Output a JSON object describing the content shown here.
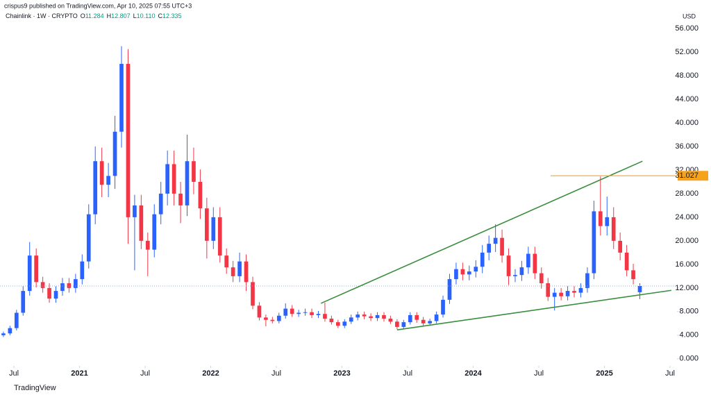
{
  "chart_data": {
    "type": "candlestick",
    "published": "crispus9 published on TradingView.com, Apr 10, 2025 07:55 UTC+3",
    "symbol": "Chainlink · 1W · CRYPTO",
    "ohlc_labels": [
      "O",
      "H",
      "L",
      "C"
    ],
    "ohlc_values": [
      "11.284",
      "12.807",
      "10.110",
      "12.335"
    ],
    "currency": "USD",
    "brand": "TradingView",
    "up_color": "#2962ff",
    "down_color": "#f23645",
    "x": [
      2020.42,
      2020.47,
      2020.52,
      2020.57,
      2020.62,
      2020.67,
      2020.72,
      2020.77,
      2020.82,
      2020.87,
      2020.92,
      2020.97,
      2021.02,
      2021.07,
      2021.12,
      2021.17,
      2021.22,
      2021.27,
      2021.32,
      2021.37,
      2021.42,
      2021.47,
      2021.52,
      2021.57,
      2021.62,
      2021.67,
      2021.72,
      2021.77,
      2021.82,
      2021.87,
      2021.92,
      2021.97,
      2022.02,
      2022.07,
      2022.12,
      2022.17,
      2022.22,
      2022.27,
      2022.32,
      2022.37,
      2022.42,
      2022.47,
      2022.52,
      2022.57,
      2022.62,
      2022.67,
      2022.72,
      2022.77,
      2022.82,
      2022.87,
      2022.92,
      2022.97,
      2023.02,
      2023.07,
      2023.12,
      2023.17,
      2023.22,
      2023.27,
      2023.32,
      2023.37,
      2023.42,
      2023.47,
      2023.52,
      2023.57,
      2023.62,
      2023.67,
      2023.72,
      2023.77,
      2023.82,
      2023.87,
      2023.92,
      2023.97,
      2024.02,
      2024.07,
      2024.12,
      2024.17,
      2024.22,
      2024.27,
      2024.32,
      2024.37,
      2024.42,
      2024.47,
      2024.52,
      2024.57,
      2024.62,
      2024.67,
      2024.72,
      2024.77,
      2024.82,
      2024.87,
      2024.92,
      2024.97,
      2025.02,
      2025.07,
      2025.12,
      2025.17,
      2025.22,
      2025.27
    ],
    "open": [
      4.0,
      4.3,
      5.2,
      7.8,
      11.5,
      17.5,
      13.0,
      12.0,
      10.2,
      11.5,
      12.8,
      12.0,
      13.5,
      16.5,
      24.5,
      33.5,
      29.5,
      31.0,
      38.5,
      50.0,
      24.0,
      26.0,
      20.0,
      18.5,
      24.5,
      28.0,
      33.0,
      28.0,
      26.0,
      33.5,
      30.0,
      25.5,
      20.0,
      24.0,
      17.5,
      15.5,
      14.0,
      16.5,
      13.0,
      9.0,
      7.0,
      6.6,
      6.4,
      7.3,
      8.5,
      7.6,
      7.8,
      7.9,
      7.4,
      7.6,
      6.8,
      6.2,
      5.6,
      6.3,
      7.0,
      7.5,
      7.2,
      6.9,
      7.4,
      6.8,
      6.3,
      5.4,
      6.2,
      7.4,
      6.6,
      6.0,
      6.4,
      7.5,
      10.0,
      13.5,
      15.2,
      14.3,
      14.8,
      15.6,
      18.0,
      19.5,
      20.5,
      17.5,
      14.0,
      14.2,
      15.5,
      17.8,
      14.5,
      12.8,
      10.5,
      11.2,
      10.6,
      11.5,
      11.2,
      12.0,
      14.5,
      25.0,
      22.5,
      24.0,
      20.0,
      18.0,
      15.0,
      11.284
    ],
    "high": [
      4.6,
      5.6,
      8.3,
      12.3,
      19.8,
      18.7,
      13.9,
      12.8,
      12.3,
      13.7,
      13.7,
      14.4,
      17.7,
      26.2,
      36.0,
      35.8,
      33.2,
      41.2,
      53.0,
      52.5,
      27.8,
      27.8,
      21.4,
      26.2,
      30.0,
      35.3,
      35.3,
      30.0,
      38.0,
      35.8,
      32.1,
      27.3,
      25.7,
      25.7,
      18.7,
      16.6,
      18.0,
      17.7,
      13.9,
      9.6,
      7.5,
      7.1,
      7.8,
      9.4,
      9.1,
      8.3,
      8.5,
      8.5,
      8.1,
      9.5,
      7.3,
      6.6,
      6.7,
      7.5,
      8.0,
      8.0,
      7.7,
      7.9,
      7.9,
      7.3,
      6.7,
      6.6,
      7.9,
      7.9,
      7.1,
      6.8,
      8.0,
      10.7,
      14.4,
      16.3,
      16.3,
      15.8,
      16.7,
      19.3,
      20.9,
      22.8,
      21.9,
      18.7,
      15.2,
      16.6,
      19.0,
      19.0,
      15.5,
      13.7,
      12.0,
      12.0,
      12.3,
      12.3,
      12.8,
      15.5,
      26.8,
      30.9,
      27.5,
      25.7,
      21.4,
      19.3,
      16.1,
      12.807
    ],
    "low": [
      3.7,
      4.0,
      4.8,
      7.3,
      10.7,
      12.1,
      11.2,
      9.5,
      9.5,
      10.7,
      11.2,
      11.2,
      12.6,
      15.3,
      22.8,
      27.4,
      27.4,
      28.8,
      35.8,
      19.5,
      15.0,
      18.6,
      14.0,
      17.2,
      22.8,
      26.0,
      26.0,
      23.0,
      24.2,
      27.9,
      23.7,
      17.0,
      18.6,
      16.3,
      14.4,
      13.0,
      13.0,
      11.5,
      8.4,
      6.5,
      5.5,
      6.0,
      6.0,
      6.8,
      7.1,
      7.1,
      7.3,
      6.9,
      6.9,
      6.3,
      5.8,
      5.2,
      5.2,
      5.9,
      6.5,
      6.7,
      6.4,
      6.4,
      6.3,
      5.9,
      5.0,
      5.0,
      5.8,
      6.1,
      5.6,
      5.6,
      6.0,
      7.0,
      9.3,
      12.6,
      13.3,
      13.3,
      13.8,
      14.5,
      16.7,
      18.1,
      16.3,
      12.5,
      13.0,
      13.2,
      14.4,
      13.5,
      11.9,
      9.8,
      8.2,
      9.9,
      9.9,
      10.4,
      10.4,
      11.2,
      13.5,
      20.9,
      20.9,
      18.6,
      16.7,
      14.0,
      12.6,
      10.11
    ],
    "close": [
      4.3,
      5.2,
      7.8,
      11.5,
      17.5,
      13.0,
      12.0,
      10.2,
      11.5,
      12.8,
      12.0,
      13.5,
      16.5,
      24.5,
      33.5,
      29.5,
      31.0,
      38.5,
      50.0,
      24.0,
      26.0,
      20.0,
      18.5,
      24.5,
      28.0,
      33.0,
      28.0,
      26.0,
      33.5,
      30.0,
      25.5,
      20.0,
      24.0,
      17.5,
      15.5,
      14.0,
      16.5,
      13.0,
      9.0,
      7.0,
      6.6,
      6.4,
      7.3,
      8.5,
      7.6,
      7.8,
      7.9,
      7.4,
      7.6,
      6.8,
      6.2,
      5.6,
      6.3,
      7.0,
      7.5,
      7.2,
      6.9,
      7.4,
      6.8,
      6.3,
      5.4,
      6.2,
      7.4,
      6.6,
      6.0,
      6.4,
      7.5,
      10.0,
      13.5,
      15.2,
      14.3,
      14.8,
      15.6,
      18.0,
      19.5,
      20.5,
      17.5,
      14.0,
      14.2,
      15.5,
      17.8,
      14.5,
      12.8,
      10.5,
      11.2,
      10.6,
      11.5,
      11.2,
      12.0,
      14.5,
      25.0,
      22.5,
      24.0,
      20.0,
      18.0,
      15.0,
      13.5,
      12.335
    ],
    "last_price_color": "#8fa9d6",
    "trendline_color": "#388e3c",
    "trendlines": [
      {
        "x": [
          2022.84,
          2025.29
        ],
        "y": [
          9.4,
          33.5
        ]
      },
      {
        "x": [
          2023.42,
          2025.51
        ],
        "y": [
          4.9,
          11.6
        ]
      }
    ],
    "resistance": {
      "value": 31.027,
      "x_start": 2024.59,
      "color": "#f7a21b"
    },
    "xlim": [
      2020.394,
      2025.553
    ],
    "xticks": [
      {
        "value": 2020.5,
        "label": "Jul"
      },
      2021,
      {
        "value": 2021.5,
        "label": "Jul"
      },
      2022,
      {
        "value": 2022.5,
        "label": "Jul"
      },
      2023,
      {
        "value": 2023.5,
        "label": "Jul"
      },
      2024,
      {
        "value": 2024.5,
        "label": "Jul"
      },
      2025,
      {
        "value": 2025.5,
        "label": "Jul"
      }
    ],
    "ylim": [
      -1.2,
      57.3
    ],
    "yticks": [
      {
        "value": 0,
        "label": "0.000"
      },
      {
        "value": 4,
        "label": "4.000"
      },
      {
        "value": 8,
        "label": "8.000"
      },
      {
        "value": 12,
        "label": "12.000"
      },
      {
        "value": 16,
        "label": "16.000"
      },
      {
        "value": 20,
        "label": "20.000"
      },
      {
        "value": 24,
        "label": "24.000"
      },
      {
        "value": 28,
        "label": "28.000"
      },
      {
        "value": 32,
        "label": "32.000"
      },
      {
        "value": 36,
        "label": "36.000"
      },
      {
        "value": 40,
        "label": "40.000"
      },
      {
        "value": 44,
        "label": "44.000"
      },
      {
        "value": 48,
        "label": "48.000"
      },
      {
        "value": 52,
        "label": "52.000"
      },
      {
        "value": 56,
        "label": "56.000"
      }
    ]
  }
}
